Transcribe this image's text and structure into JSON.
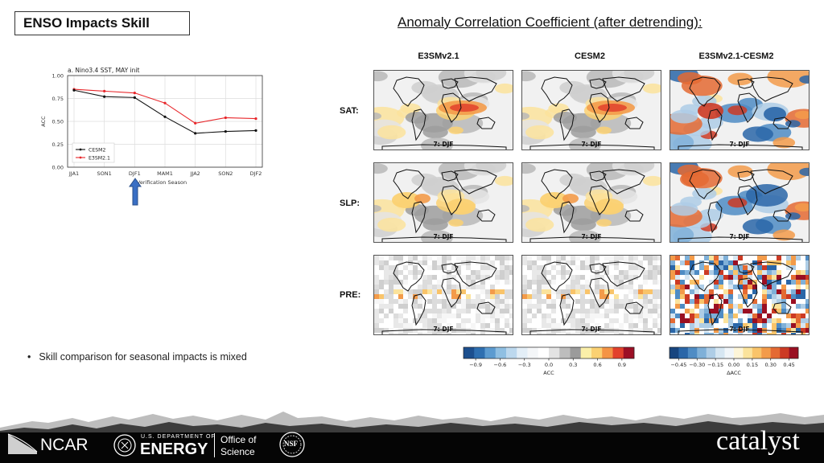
{
  "header": {
    "title": "ENSO Impacts Skill",
    "acc_heading": "Anomaly Correlation Coefficient (after detrending):"
  },
  "maps": {
    "columns": [
      "E3SMv2.1",
      "CESM2",
      "E3SMv2.1-CESM2"
    ],
    "rows": [
      "SAT:",
      "SLP:",
      "PRE:"
    ],
    "panel_label": "7: DJF"
  },
  "arrow": {
    "color": "#3a6fc4"
  },
  "chart_data": {
    "type": "line",
    "title": "a. Nino3.4 SST, MAY init",
    "xlabel": "Verification Season",
    "ylabel": "ACC",
    "categories": [
      "JJA1",
      "SON1",
      "DJF1",
      "MAM1",
      "JJA2",
      "SON2",
      "DJF2"
    ],
    "ylim": [
      0,
      1
    ],
    "yticks": [
      "0.00",
      "0.25",
      "0.50",
      "0.75",
      "1.00"
    ],
    "grid": true,
    "legend_position": "lower-left",
    "series": [
      {
        "name": "CESM2",
        "color": "#111111",
        "values": [
          0.84,
          0.77,
          0.76,
          0.55,
          0.37,
          0.39,
          0.4
        ]
      },
      {
        "name": "E3SM2.1",
        "color": "#e8262a",
        "values": [
          0.85,
          0.83,
          0.81,
          0.7,
          0.48,
          0.54,
          0.53
        ]
      }
    ]
  },
  "colorbars": [
    {
      "label": "ACC",
      "ticks": [
        "−0.9",
        "−0.6",
        "−0.3",
        "0.0",
        "0.3",
        "0.6",
        "0.9"
      ],
      "colors": [
        "#1c4f8e",
        "#2e6fb0",
        "#5c9bd0",
        "#8fbfe2",
        "#bcd8ee",
        "#e3eef7",
        "#f4f6f8",
        "#ffffff",
        "#e3e3e3",
        "#bdbdbd",
        "#9b9b9b",
        "#fbefa9",
        "#fbd172",
        "#f49445",
        "#e2412c",
        "#9c0f25"
      ]
    },
    {
      "label": "ΔACC",
      "ticks": [
        "−0.45",
        "−0.30",
        "−0.15",
        "0.00",
        "0.15",
        "0.30",
        "0.45"
      ],
      "colors": [
        "#17457f",
        "#2a66a8",
        "#4f8cc4",
        "#7fb0d8",
        "#aecde6",
        "#d6e6f2",
        "#f0f5f9",
        "#fdf5d8",
        "#fbe39c",
        "#f9c46a",
        "#f39b4a",
        "#e46a33",
        "#cc3a24",
        "#9a0f22"
      ]
    }
  ],
  "bullets": [
    "Skill comparison for seasonal impacts is mixed"
  ],
  "footer": {
    "logos": [
      "NCAR",
      "U.S. DEPARTMENT OF",
      "ENERGY",
      "Office of",
      "Science",
      "NSF",
      "catalyst"
    ]
  }
}
